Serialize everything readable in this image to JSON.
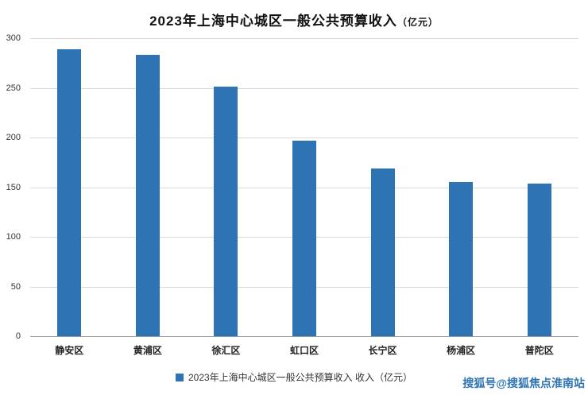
{
  "title": {
    "main": "2023年上海中心城区一般公共预算收入",
    "suffix": "（亿元）"
  },
  "legend": {
    "label": "2023年上海中心城区一般公共预算收入 收入（亿元）"
  },
  "watermark": "搜狐号@搜狐焦点淮南站",
  "colors": {
    "bar": "#2E74B5",
    "gridline": "#D9D9D9",
    "axis": "#9A9A9A",
    "watermark": "#2E74B5",
    "legend_swatch": "#2E74B5"
  },
  "chart_data": {
    "type": "bar",
    "title": "2023年上海中心城区一般公共预算收入（亿元）",
    "categories": [
      "静安区",
      "黄浦区",
      "徐汇区",
      "虹口区",
      "长宁区",
      "杨浦区",
      "普陀区"
    ],
    "values": [
      289,
      283,
      251,
      197,
      169,
      155,
      154
    ],
    "xlabel": "",
    "ylabel": "",
    "ylim": [
      0,
      300
    ],
    "ytick_step": 50,
    "yticks": [
      0,
      50,
      100,
      150,
      200,
      250,
      300
    ],
    "grid": true,
    "legend_position": "bottom",
    "legend_entries": [
      "2023年上海中心城区一般公共预算收入 收入（亿元）"
    ]
  }
}
